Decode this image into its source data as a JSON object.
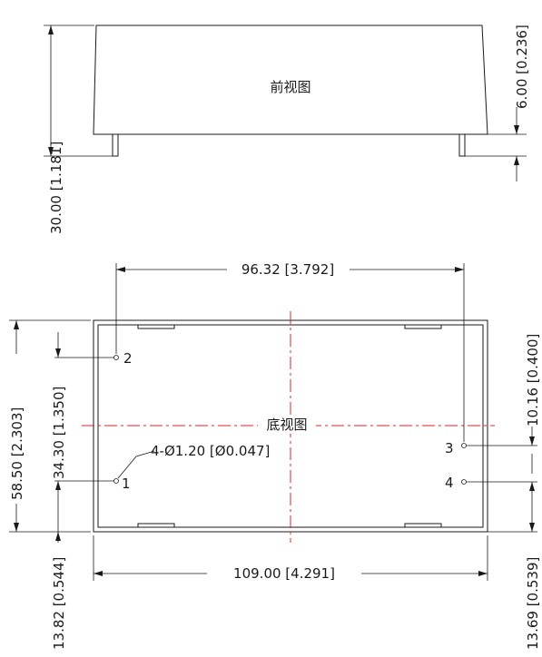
{
  "views": {
    "front": {
      "title": "前视图"
    },
    "bottom": {
      "title": "底视图"
    }
  },
  "dimensions": {
    "height_total": "30.00 [1.181]",
    "height_body_offset": "6.00 [0.236]",
    "pin_span_horizontal": "96.32 [3.792]",
    "width_total": "109.00 [4.291]",
    "depth_total": "58.50 [2.303]",
    "pin2_to_pin1": "34.30 [1.350]",
    "pin1_to_edge": "13.82 [0.544]",
    "pin3_to_pin4": "10.16 [0.400]",
    "pin4_to_edge": "13.69 [0.539]",
    "pin_hole": "4-Ø1.20 [Ø0.047]"
  },
  "pins": {
    "p1": "1",
    "p2": "2",
    "p3": "3",
    "p4": "4"
  },
  "colors": {
    "outline": "#1a1a1a",
    "centerline": "#e02020",
    "background": "#ffffff"
  }
}
